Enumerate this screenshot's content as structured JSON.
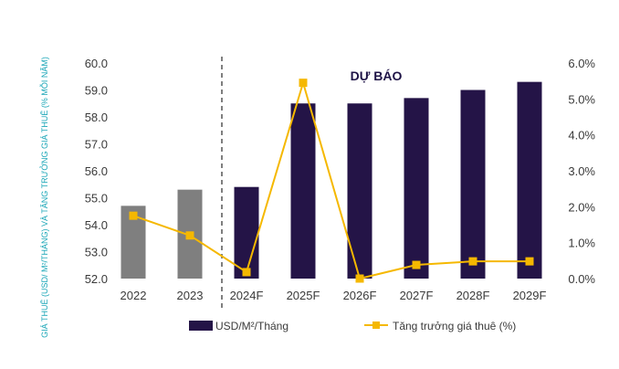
{
  "chart_data": {
    "type": "bar",
    "categories": [
      "2022",
      "2023",
      "2024F",
      "2025F",
      "2026F",
      "2027F",
      "2028F",
      "2029F"
    ],
    "series": [
      {
        "name": "USD/M²/Tháng",
        "type": "bar",
        "axis": "left",
        "values": [
          54.7,
          55.3,
          55.4,
          58.5,
          58.5,
          58.7,
          59.0,
          59.3
        ],
        "colors": [
          "#7f7f7f",
          "#7f7f7f",
          "#241447",
          "#241447",
          "#241447",
          "#241447",
          "#241447",
          "#241447"
        ]
      },
      {
        "name": "Tăng trưởng giá thuê (%)",
        "type": "line",
        "axis": "right",
        "values": [
          1.75,
          1.2,
          0.18,
          5.45,
          0.0,
          0.38,
          0.48,
          0.48
        ],
        "color": "#f5b800"
      }
    ],
    "yleft": {
      "ticks": [
        "60.0",
        "59.0",
        "58.0",
        "57.0",
        "56.0",
        "55.0",
        "54.0",
        "53.0",
        "52.0"
      ],
      "lim": [
        52,
        60
      ]
    },
    "yright": {
      "ticks": [
        "6.0%",
        "5.0%",
        "4.0%",
        "3.0%",
        "2.0%",
        "1.0%",
        "0.0%"
      ],
      "lim": [
        0,
        6
      ]
    },
    "ylabel": "GIÁ THUÊ (USD/ M²/THÁNG) VÀ TĂNG TRƯỞNG GIÁ THUÊ (% MỖI NĂM)",
    "annotation": "DỰ BÁO",
    "forecast_divider_after": "2023",
    "grid": false,
    "legend_position": "bottom"
  }
}
